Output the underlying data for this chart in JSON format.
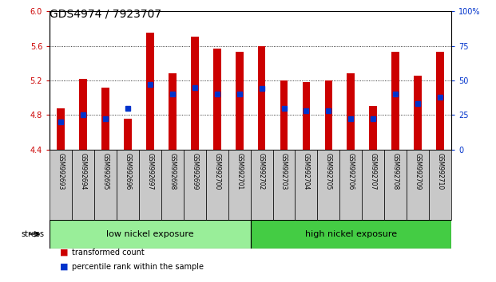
{
  "title": "GDS4974 / 7923707",
  "samples": [
    "GSM992693",
    "GSM992694",
    "GSM992695",
    "GSM992696",
    "GSM992697",
    "GSM992698",
    "GSM992699",
    "GSM992700",
    "GSM992701",
    "GSM992702",
    "GSM992703",
    "GSM992704",
    "GSM992705",
    "GSM992706",
    "GSM992707",
    "GSM992708",
    "GSM992709",
    "GSM992710"
  ],
  "transformed_count": [
    4.88,
    5.22,
    5.12,
    4.76,
    5.75,
    5.28,
    5.71,
    5.57,
    5.53,
    5.6,
    5.2,
    5.18,
    5.2,
    5.28,
    4.9,
    5.53,
    5.25,
    5.53
  ],
  "percentile_rank": [
    20,
    25,
    22,
    30,
    47,
    40,
    45,
    40,
    40,
    44,
    30,
    28,
    28,
    22,
    22,
    40,
    33,
    38
  ],
  "ylim_left": [
    4.4,
    6.0
  ],
  "ylim_right": [
    0,
    100
  ],
  "yticks_left": [
    4.4,
    4.8,
    5.2,
    5.6,
    6.0
  ],
  "yticks_right": [
    0,
    25,
    50,
    75,
    100
  ],
  "ytick_labels_right": [
    "0",
    "25",
    "50",
    "75",
    "100%"
  ],
  "bar_color_red": "#cc0000",
  "bar_color_blue": "#0033cc",
  "bg_color": "#ffffff",
  "bar_width": 0.35,
  "blue_marker_size": 5,
  "group_low": {
    "label": "low nickel exposure",
    "n": 9,
    "color": "#99ee99"
  },
  "group_high": {
    "label": "high nickel exposure",
    "n": 9,
    "color": "#44cc44"
  },
  "stress_label": "stress",
  "legend_items": [
    {
      "label": "transformed count",
      "color": "#cc0000"
    },
    {
      "label": "percentile rank within the sample",
      "color": "#0033cc"
    }
  ],
  "xlabel_bg": "#c8c8c8",
  "title_fontsize": 10,
  "tick_fontsize": 7,
  "label_fontsize": 7,
  "group_fontsize": 8
}
